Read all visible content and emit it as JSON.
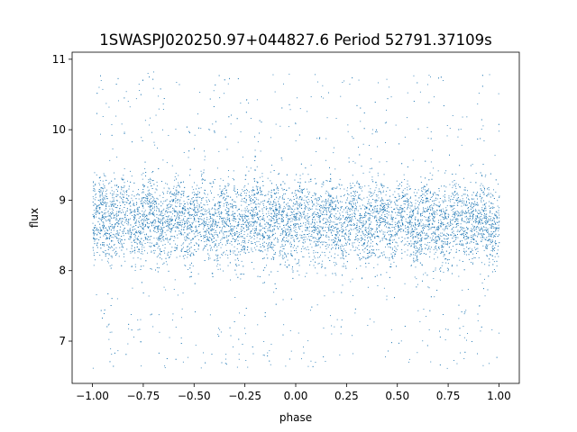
{
  "chart_data": {
    "type": "scatter",
    "title": "1SWASPJ020250.97+044827.6 Period 52791.37109s",
    "xlabel": "phase",
    "ylabel": "flux",
    "xlim": [
      -1.1,
      1.1
    ],
    "ylim": [
      6.4,
      11.1
    ],
    "x_ticks": [
      -1.0,
      -0.75,
      -0.5,
      -0.25,
      0.0,
      0.25,
      0.5,
      0.75,
      1.0
    ],
    "x_tick_labels": [
      "−1.00",
      "−0.75",
      "−0.50",
      "−0.25",
      "0.00",
      "0.25",
      "0.50",
      "0.75",
      "1.00"
    ],
    "y_ticks": [
      7,
      8,
      9,
      10,
      11
    ],
    "y_tick_labels": [
      "7",
      "8",
      "9",
      "10",
      "11"
    ],
    "grid": false,
    "legend": "none",
    "series": [
      {
        "color": "#1f77b4",
        "x_range": [
          -1.0,
          1.0
        ],
        "y_range": [
          6.6,
          11.0
        ],
        "x": [
          -1.0,
          -0.95,
          -0.9,
          -0.85,
          -0.8,
          -0.75,
          -0.7,
          -0.65,
          -0.6,
          -0.55,
          -0.5,
          -0.45,
          -0.4,
          -0.35,
          -0.3,
          -0.25,
          -0.2,
          -0.15,
          -0.1,
          -0.05,
          0.0,
          0.05,
          0.1,
          0.15,
          0.2,
          0.25,
          0.3,
          0.35,
          0.4,
          0.45,
          0.5,
          0.55,
          0.6,
          0.65,
          0.7,
          0.75,
          0.8,
          0.85,
          0.9,
          0.95,
          1.0
        ],
        "y_center": [
          8.7,
          8.7,
          8.75,
          8.7,
          8.7,
          8.75,
          8.75,
          8.7,
          8.7,
          8.75,
          8.75,
          8.7,
          8.7,
          8.7,
          8.7,
          8.7,
          8.75,
          8.7,
          8.7,
          8.7,
          8.7,
          8.7,
          8.75,
          8.7,
          8.7,
          8.7,
          8.75,
          8.7,
          8.7,
          8.7,
          8.75,
          8.7,
          8.7,
          8.7,
          8.7,
          8.7,
          8.75,
          8.7,
          8.7,
          8.7,
          8.7
        ]
      }
    ]
  }
}
